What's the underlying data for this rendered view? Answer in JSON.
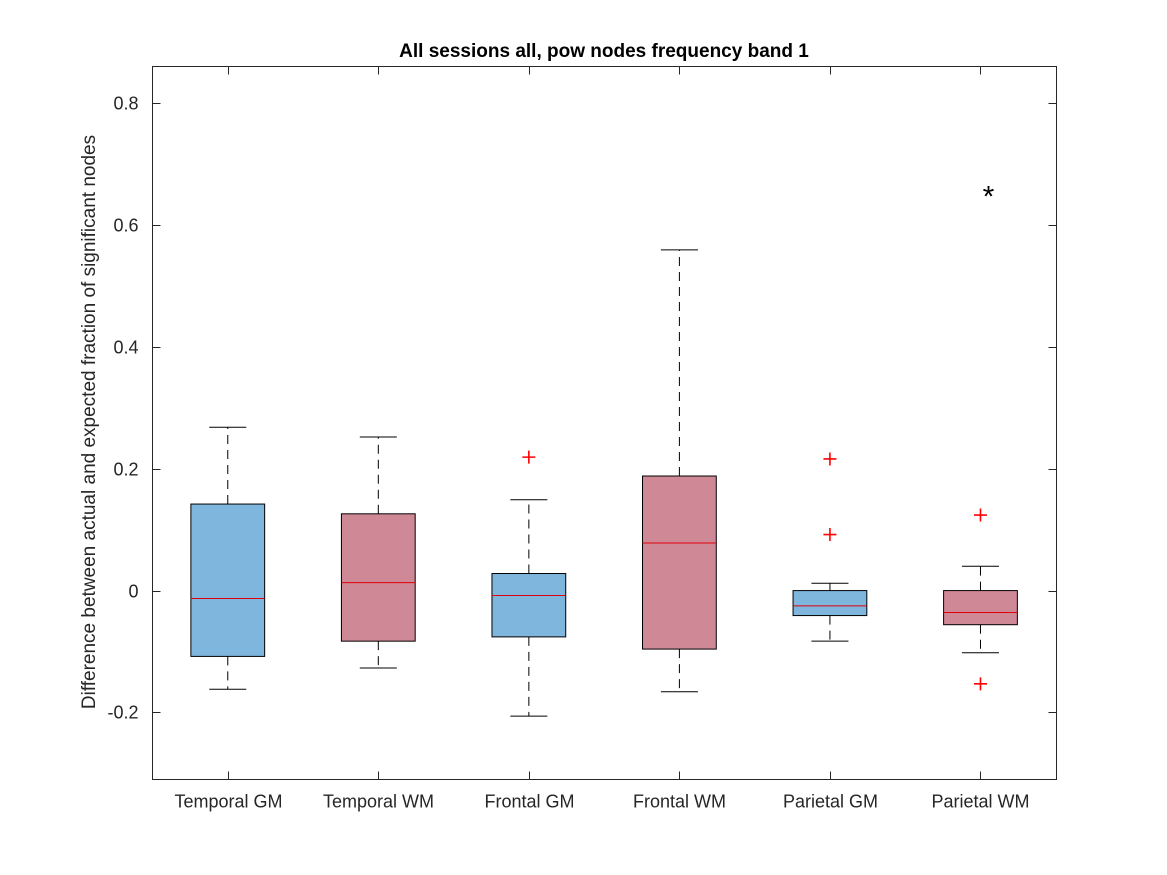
{
  "chart_data": {
    "type": "box",
    "title": "All sessions all, pow nodes frequency band 1",
    "ylabel": "Difference between actual and expected fraction of significant nodes",
    "ylim": [
      -0.31,
      0.86
    ],
    "yticks": [
      -0.2,
      0,
      0.2,
      0.4,
      0.6,
      0.8
    ],
    "ytick_labels": [
      "-0.2",
      "0",
      "0.2",
      "0.4",
      "0.6",
      "0.8"
    ],
    "grid": false,
    "colors": {
      "gm": "#7fb6de",
      "wm": "#cf8895",
      "median": "#e0000a",
      "outlier": "#ff0000"
    },
    "categories": [
      "Temporal GM",
      "Temporal WM",
      "Frontal GM",
      "Frontal WM",
      "Parietal GM",
      "Parietal WM"
    ],
    "boxes": [
      {
        "label": "Temporal GM",
        "group": "gm",
        "whisker_low": -0.162,
        "q1": -0.108,
        "median": -0.013,
        "q3": 0.142,
        "whisker_high": 0.268,
        "outliers": []
      },
      {
        "label": "Temporal WM",
        "group": "wm",
        "whisker_low": -0.127,
        "q1": -0.083,
        "median": 0.013,
        "q3": 0.126,
        "whisker_high": 0.252,
        "outliers": []
      },
      {
        "label": "Frontal GM",
        "group": "gm",
        "whisker_low": -0.206,
        "q1": -0.076,
        "median": -0.008,
        "q3": 0.028,
        "whisker_high": 0.149,
        "outliers": [
          0.219
        ]
      },
      {
        "label": "Frontal WM",
        "group": "wm",
        "whisker_low": -0.166,
        "q1": -0.096,
        "median": 0.078,
        "q3": 0.188,
        "whisker_high": 0.559,
        "outliers": []
      },
      {
        "label": "Parietal GM",
        "group": "gm",
        "whisker_low": -0.083,
        "q1": -0.041,
        "median": -0.025,
        "q3": 0.0,
        "whisker_high": 0.012,
        "outliers": [
          0.216,
          0.092
        ]
      },
      {
        "label": "Parietal WM",
        "group": "wm",
        "whisker_low": -0.102,
        "q1": -0.056,
        "median": -0.036,
        "q3": 0.0,
        "whisker_high": 0.04,
        "outliers": [
          0.124,
          -0.153
        ]
      }
    ],
    "annotations": [
      {
        "text": "*",
        "category": "Parietal WM",
        "y": 0.66
      }
    ]
  }
}
